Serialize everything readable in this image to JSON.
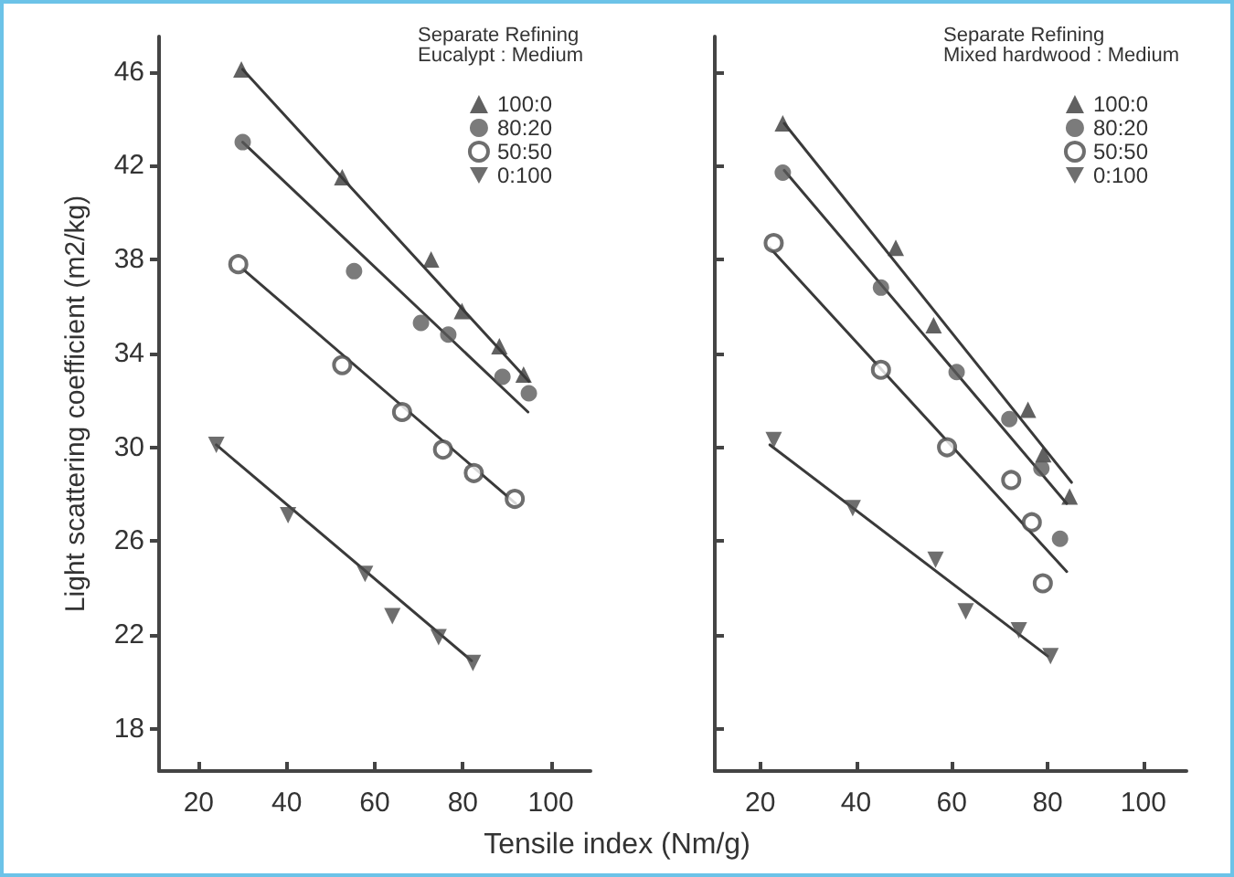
{
  "chart_data": [
    {
      "type": "scatter",
      "ylabel": "Light scattering coefficient (m2/kg)",
      "xlabel": "Tensile index (Nm/g)",
      "legend_title": "Separate Refining\nEucalypt : Medium",
      "legend": "top right",
      "grid": false,
      "xlim": [
        11,
        109
      ],
      "ylim": [
        16.2,
        47.5
      ],
      "xticks": [
        20,
        40,
        60,
        80,
        100
      ],
      "yticks": [
        18,
        22,
        26,
        30,
        34,
        38,
        42,
        46
      ],
      "series": [
        {
          "name": "100:0",
          "color": "#3a3a3a",
          "marker": "triangle",
          "x": [
            29.7,
            52.6,
            72.8,
            79.8,
            88.3,
            93.8
          ],
          "values": [
            46.1,
            41.5,
            38.0,
            35.8,
            34.3,
            33.1
          ]
        },
        {
          "name": "80:20",
          "color": "#5a5a5a",
          "marker": "circle",
          "x": [
            30,
            55.3,
            70.5,
            76.7,
            89,
            95
          ],
          "values": [
            43.0,
            37.5,
            35.3,
            34.8,
            33.0,
            32.3
          ]
        },
        {
          "name": "50:50",
          "color": "#4a4a4a",
          "marker": "open-circle",
          "x": [
            29,
            52.6,
            66.2,
            75.5,
            82.5,
            91.8
          ],
          "values": [
            37.8,
            33.5,
            31.5,
            29.9,
            28.9,
            27.8
          ]
        },
        {
          "name": "0:100",
          "color": "#4a4a4a",
          "marker": "triangle-down",
          "x": [
            24,
            40.3,
            57.8,
            64,
            74.5,
            82.3
          ],
          "values": [
            30.1,
            27.1,
            24.6,
            22.8,
            21.9,
            20.8
          ]
        },
        {
          "type": "line",
          "color": "#3a3a3a",
          "marker": "none",
          "x": [
            30,
            95
          ],
          "values": [
            46.1,
            32.8
          ]
        },
        {
          "type": "line",
          "color": "#3a3a3a",
          "marker": "none",
          "x": [
            30,
            94.8
          ],
          "values": [
            43.0,
            31.5
          ]
        },
        {
          "type": "line",
          "color": "#3a3a3a",
          "marker": "none",
          "x": [
            30,
            92
          ],
          "values": [
            37.6,
            27.6
          ]
        },
        {
          "type": "line",
          "color": "#3a3a3a",
          "marker": "none",
          "x": [
            24,
            82
          ],
          "values": [
            30.1,
            20.9
          ]
        }
      ]
    },
    {
      "type": "scatter",
      "legend_title": "Separate Refining\nMixed hardwood : Medium",
      "legend": "top right",
      "grid": false,
      "tick_labels": "x",
      "xlim": [
        10.5,
        109
      ],
      "ylim": [
        16.2,
        47.5
      ],
      "xticks": [
        20,
        40,
        60,
        80,
        100
      ],
      "yticks": [
        18,
        22,
        26,
        30,
        34,
        38,
        42,
        46
      ],
      "series": [
        {
          "name": "100:0",
          "color": "#3a3a3a",
          "marker": "triangle",
          "x": [
            24.7,
            48.3,
            56.2,
            75.9,
            79.1,
            84.6
          ],
          "values": [
            43.8,
            38.5,
            35.2,
            31.6,
            29.7,
            27.9
          ]
        },
        {
          "name": "80:20",
          "color": "#5a5a5a",
          "marker": "circle",
          "x": [
            24.7,
            45.2,
            61,
            72,
            78.7,
            82.6
          ],
          "values": [
            41.7,
            36.8,
            33.2,
            31.2,
            29.1,
            26.1
          ]
        },
        {
          "name": "50:50",
          "color": "#4a4a4a",
          "marker": "open-circle",
          "x": [
            22.8,
            45.2,
            59,
            72.4,
            76.7,
            79
          ],
          "values": [
            38.7,
            33.3,
            30.0,
            28.6,
            26.8,
            24.2
          ]
        },
        {
          "name": "0:100",
          "color": "#4a4a4a",
          "marker": "triangle-down",
          "x": [
            22.8,
            39.3,
            56.6,
            62.9,
            74,
            80.6
          ],
          "values": [
            30.3,
            27.4,
            25.2,
            23.0,
            22.2,
            21.1
          ]
        },
        {
          "type": "line",
          "color": "#3a3a3a",
          "marker": "none",
          "x": [
            25,
            85
          ],
          "values": [
            43.8,
            28.5
          ]
        },
        {
          "type": "line",
          "color": "#3a3a3a",
          "marker": "none",
          "x": [
            25,
            84
          ],
          "values": [
            41.8,
            27.6
          ]
        },
        {
          "type": "line",
          "color": "#3a3a3a",
          "marker": "none",
          "x": [
            22,
            84
          ],
          "values": [
            38.5,
            24.7
          ]
        },
        {
          "type": "line",
          "color": "#3a3a3a",
          "marker": "none",
          "x": [
            22,
            80
          ],
          "values": [
            30.1,
            21.1
          ]
        }
      ]
    }
  ]
}
